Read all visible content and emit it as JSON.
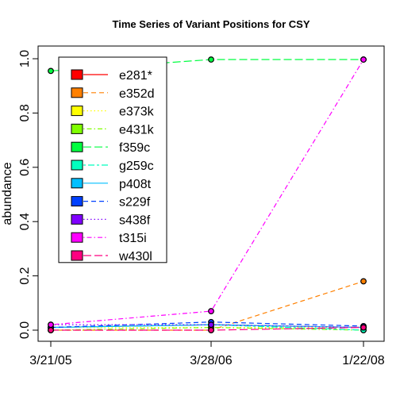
{
  "chart_data": {
    "type": "line",
    "title": "Time Series of Variant Positions for CSY",
    "xlabel": "",
    "ylabel": "abundance",
    "categories": [
      "3/21/05",
      "3/28/06",
      "1/22/08"
    ],
    "ylim": [
      0,
      1
    ],
    "yticks": [
      "0.0",
      "0.2",
      "0.4",
      "0.6",
      "0.8",
      "1.0"
    ],
    "legend_position": "top-left",
    "series": [
      {
        "name": "e281*",
        "color": "#FF0000",
        "dash": "solid",
        "values": [
          0.01,
          0.02,
          0.01
        ]
      },
      {
        "name": "e352d",
        "color": "#FF8000",
        "dash": "dashed",
        "values": [
          0.0,
          0.0,
          0.18
        ]
      },
      {
        "name": "e373k",
        "color": "#FFFF00",
        "dash": "dotted",
        "values": [
          0.01,
          0.01,
          0.01
        ]
      },
      {
        "name": "e431k",
        "color": "#80FF00",
        "dash": "dotdash",
        "values": [
          0.0,
          0.01,
          0.0
        ]
      },
      {
        "name": "f359c",
        "color": "#00FF40",
        "dash": "longdash",
        "values": [
          0.955,
          0.997,
          0.997
        ]
      },
      {
        "name": "g259c",
        "color": "#00FFBF",
        "dash": "twodash",
        "values": [
          0.01,
          0.02,
          0.0
        ]
      },
      {
        "name": "p408t",
        "color": "#00BFFF",
        "dash": "solid",
        "values": [
          0.01,
          0.02,
          0.01
        ]
      },
      {
        "name": "s229f",
        "color": "#0040FF",
        "dash": "dashed",
        "values": [
          0.01,
          0.03,
          0.015
        ]
      },
      {
        "name": "s438f",
        "color": "#8000FF",
        "dash": "dotted",
        "values": [
          0.02,
          0.02,
          0.01
        ]
      },
      {
        "name": "t315i",
        "color": "#FF00FF",
        "dash": "dotdash",
        "values": [
          0.02,
          0.07,
          0.997
        ]
      },
      {
        "name": "w430l",
        "color": "#FF0080",
        "dash": "longdash",
        "values": [
          0.0,
          0.0,
          0.01
        ]
      }
    ]
  }
}
